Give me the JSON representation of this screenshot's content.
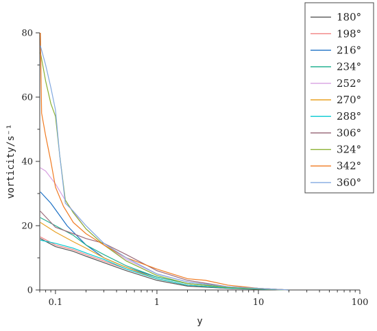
{
  "chart_data": {
    "type": "line",
    "title": "",
    "xlabel": "y",
    "ylabel": "vorticity/s⁻¹",
    "x_scale": "log",
    "xlim": [
      0.07,
      100
    ],
    "ylim": [
      0,
      80
    ],
    "x_ticks": [
      {
        "value": 0.1,
        "label": "0.1"
      },
      {
        "value": 1,
        "label": "1"
      },
      {
        "value": 10,
        "label": "10"
      },
      {
        "value": 100,
        "label": "100"
      }
    ],
    "y_ticks": [
      {
        "value": 0,
        "label": "0"
      },
      {
        "value": 20,
        "label": "20"
      },
      {
        "value": 40,
        "label": "40"
      },
      {
        "value": 60,
        "label": "60"
      },
      {
        "value": 80,
        "label": "80"
      }
    ],
    "grid": false,
    "legend_position": "top-right",
    "series": [
      {
        "name": "180°",
        "color": "#555555",
        "points": [
          [
            0.071,
            16
          ],
          [
            0.1,
            13.5
          ],
          [
            0.15,
            12
          ],
          [
            0.2,
            10.5
          ],
          [
            0.3,
            8.5
          ],
          [
            0.5,
            6
          ],
          [
            1,
            3
          ],
          [
            2,
            1.2
          ],
          [
            5,
            0.5
          ],
          [
            10,
            0.2
          ],
          [
            20,
            0
          ]
        ]
      },
      {
        "name": "198°",
        "color": "#f08080",
        "points": [
          [
            0.071,
            16.5
          ],
          [
            0.1,
            14
          ],
          [
            0.15,
            12.5
          ],
          [
            0.2,
            11
          ],
          [
            0.3,
            9
          ],
          [
            0.5,
            6.5
          ],
          [
            1,
            3.5
          ],
          [
            2,
            1.5
          ],
          [
            5,
            0.6
          ],
          [
            10,
            0.3
          ],
          [
            20,
            0
          ]
        ]
      },
      {
        "name": "216°",
        "color": "#1a6fc4",
        "points": [
          [
            0.071,
            30.5
          ],
          [
            0.09,
            27
          ],
          [
            0.1,
            25
          ],
          [
            0.13,
            20
          ],
          [
            0.2,
            14
          ],
          [
            0.3,
            10
          ],
          [
            0.5,
            7
          ],
          [
            1,
            4
          ],
          [
            2,
            2
          ],
          [
            5,
            0.8
          ],
          [
            10,
            0.4
          ],
          [
            20,
            0
          ]
        ]
      },
      {
        "name": "234°",
        "color": "#20b090",
        "points": [
          [
            0.071,
            22.5
          ],
          [
            0.1,
            20
          ],
          [
            0.15,
            17
          ],
          [
            0.2,
            14
          ],
          [
            0.3,
            11
          ],
          [
            0.5,
            7.5
          ],
          [
            1,
            4
          ],
          [
            2,
            2
          ],
          [
            5,
            0.9
          ],
          [
            10,
            0.5
          ],
          [
            20,
            0
          ]
        ]
      },
      {
        "name": "252°",
        "color": "#d79fe0",
        "points": [
          [
            0.071,
            38
          ],
          [
            0.08,
            37
          ],
          [
            0.1,
            33
          ],
          [
            0.13,
            27
          ],
          [
            0.2,
            19
          ],
          [
            0.3,
            14
          ],
          [
            0.5,
            9.5
          ],
          [
            1,
            5
          ],
          [
            2,
            2.5
          ],
          [
            5,
            1
          ],
          [
            10,
            0.5
          ],
          [
            20,
            0
          ]
        ]
      },
      {
        "name": "270°",
        "color": "#e8a020",
        "points": [
          [
            0.071,
            21
          ],
          [
            0.1,
            18
          ],
          [
            0.15,
            15
          ],
          [
            0.2,
            13
          ],
          [
            0.3,
            10
          ],
          [
            0.5,
            7
          ],
          [
            1,
            3.5
          ],
          [
            2,
            1.5
          ],
          [
            5,
            0.6
          ],
          [
            10,
            0.3
          ],
          [
            20,
            0
          ]
        ]
      },
      {
        "name": "288°",
        "color": "#00c8d0",
        "points": [
          [
            0.071,
            15.5
          ],
          [
            0.1,
            14.5
          ],
          [
            0.15,
            13
          ],
          [
            0.2,
            11.5
          ],
          [
            0.3,
            9.5
          ],
          [
            0.5,
            6.5
          ],
          [
            1,
            3.5
          ],
          [
            2,
            1.5
          ],
          [
            5,
            0.6
          ],
          [
            10,
            0.3
          ],
          [
            20,
            0
          ]
        ]
      },
      {
        "name": "306°",
        "color": "#9a6a7a",
        "points": [
          [
            0.071,
            24.5
          ],
          [
            0.1,
            19.5
          ],
          [
            0.15,
            17.5
          ],
          [
            0.2,
            16
          ],
          [
            0.3,
            14.5
          ],
          [
            0.5,
            11
          ],
          [
            1,
            6
          ],
          [
            2,
            3
          ],
          [
            5,
            1
          ],
          [
            10,
            0.5
          ],
          [
            20,
            0
          ]
        ]
      },
      {
        "name": "324°",
        "color": "#8ab030",
        "points": [
          [
            0.071,
            74
          ],
          [
            0.08,
            65
          ],
          [
            0.09,
            58
          ],
          [
            0.1,
            54
          ],
          [
            0.11,
            42
          ],
          [
            0.125,
            28
          ],
          [
            0.15,
            24
          ],
          [
            0.2,
            19
          ],
          [
            0.3,
            14
          ],
          [
            0.5,
            9
          ],
          [
            1,
            4.5
          ],
          [
            2,
            2
          ],
          [
            5,
            0.8
          ],
          [
            10,
            0.4
          ],
          [
            20,
            0
          ]
        ]
      },
      {
        "name": "342°",
        "color": "#f07a20",
        "points": [
          [
            0.071,
            80
          ],
          [
            0.073,
            55
          ],
          [
            0.08,
            48
          ],
          [
            0.09,
            40
          ],
          [
            0.1,
            32
          ],
          [
            0.12,
            26
          ],
          [
            0.15,
            21
          ],
          [
            0.2,
            17.5
          ],
          [
            0.3,
            14
          ],
          [
            0.5,
            10
          ],
          [
            1,
            6.5
          ],
          [
            2,
            3.5
          ],
          [
            3,
            3
          ],
          [
            5,
            1.5
          ],
          [
            10,
            0.5
          ],
          [
            20,
            0
          ]
        ]
      },
      {
        "name": "360°",
        "color": "#80a8e0",
        "points": [
          [
            0.071,
            76
          ],
          [
            0.08,
            70
          ],
          [
            0.09,
            63
          ],
          [
            0.1,
            56
          ],
          [
            0.11,
            42
          ],
          [
            0.125,
            27
          ],
          [
            0.15,
            24.5
          ],
          [
            0.2,
            20
          ],
          [
            0.3,
            14.5
          ],
          [
            0.5,
            10
          ],
          [
            1,
            5
          ],
          [
            2,
            2.5
          ],
          [
            5,
            1
          ],
          [
            10,
            0.5
          ],
          [
            20,
            0
          ]
        ]
      }
    ]
  }
}
